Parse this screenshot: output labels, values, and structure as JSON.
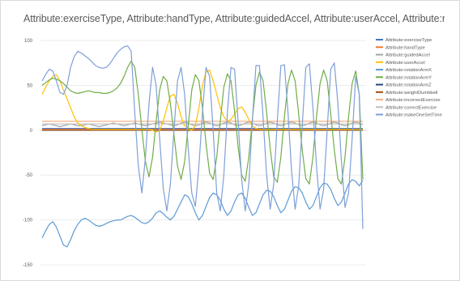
{
  "chart_data": {
    "type": "line",
    "title": "Attribute:exerciseType, Attribute:handType, Attribute:guidedAccel, Attribute:userAccel, Attribute:rotationArmX...",
    "ylim": [
      -150,
      100
    ],
    "yticks": [
      100,
      50,
      0,
      -50,
      -100,
      -150
    ],
    "grid": "horizontal",
    "legend_position": "right",
    "series": [
      {
        "name": "Attribute:exerciseType",
        "color": "#4472c4",
        "values": [
          2,
          2,
          2,
          2,
          2,
          2,
          2,
          2,
          2,
          2,
          2,
          2,
          2,
          2,
          2,
          2,
          2,
          2,
          2,
          2,
          2,
          2,
          2,
          2,
          2,
          2,
          2,
          2,
          2,
          2,
          2,
          2,
          2,
          2,
          2,
          2,
          2,
          2,
          2,
          2,
          2,
          2,
          2,
          2,
          2,
          2,
          2,
          2,
          2,
          2,
          2,
          2,
          2,
          2,
          2,
          2,
          2,
          2,
          2,
          2,
          2,
          2,
          2,
          2,
          2,
          2,
          2,
          2,
          2,
          2,
          2,
          2,
          2,
          2,
          2,
          2,
          2,
          2,
          2,
          2,
          2,
          2,
          2,
          2,
          2,
          2,
          2,
          2,
          2,
          2,
          2
        ]
      },
      {
        "name": "Attribute:handType",
        "color": "#ed7d31",
        "values": [
          1,
          1,
          1,
          1,
          1,
          1,
          1,
          1,
          1,
          1,
          1,
          1,
          1,
          1,
          1,
          1,
          1,
          1,
          1,
          1,
          1,
          1,
          1,
          1,
          1,
          1,
          1,
          1,
          1,
          1,
          1,
          1,
          1,
          1,
          1,
          1,
          1,
          1,
          1,
          1,
          1,
          1,
          1,
          1,
          1,
          1,
          1,
          1,
          1,
          1,
          1,
          1,
          1,
          1,
          1,
          1,
          1,
          1,
          1,
          1,
          1,
          1,
          1,
          1,
          1,
          1,
          1,
          1,
          1,
          1,
          1,
          1,
          1,
          1,
          1,
          1,
          1,
          1,
          1,
          1,
          1,
          1,
          1,
          1,
          1,
          1,
          1,
          1,
          1,
          1,
          1
        ]
      },
      {
        "name": "Attribute:guidedAccel",
        "color": "#a5a5a5",
        "values": [
          5,
          6,
          7,
          6,
          5,
          4,
          5,
          6,
          7,
          6,
          5,
          5,
          6,
          7,
          6,
          5,
          4,
          5,
          6,
          7,
          8,
          7,
          6,
          5,
          6,
          7,
          8,
          7,
          6,
          5,
          6,
          7,
          8,
          9,
          8,
          7,
          6,
          5,
          6,
          8,
          9,
          8,
          6,
          5,
          6,
          8,
          9,
          8,
          6,
          5,
          6,
          8,
          9,
          8,
          6,
          5,
          6,
          8,
          9,
          8,
          6,
          5,
          6,
          8,
          9,
          8,
          6,
          5,
          6,
          8,
          9,
          8,
          6,
          5,
          6,
          8,
          9,
          8,
          6,
          5,
          6,
          8,
          9,
          8,
          6,
          5,
          6,
          8,
          9,
          8,
          6
        ]
      },
      {
        "name": "Attribute:userAccel",
        "color": "#ffc000",
        "values": [
          40,
          48,
          55,
          60,
          62,
          55,
          45,
          35,
          25,
          15,
          8,
          5,
          3,
          2,
          1,
          1,
          1,
          1,
          1,
          1,
          1,
          1,
          1,
          1,
          1,
          1,
          1,
          1,
          1,
          1,
          1,
          0,
          -2,
          0,
          10,
          25,
          38,
          40,
          30,
          15,
          5,
          2,
          0,
          5,
          25,
          50,
          65,
          67,
          55,
          40,
          25,
          15,
          10,
          12,
          18,
          24,
          26,
          20,
          12,
          5,
          2,
          1,
          1,
          1,
          1,
          1,
          1,
          1,
          1,
          1,
          1,
          1,
          1,
          1,
          1,
          1,
          1,
          1,
          1,
          1,
          1,
          1,
          1,
          1,
          1,
          1,
          1,
          1,
          1,
          1,
          1
        ]
      },
      {
        "name": "Attribute:rotationArmX",
        "color": "#5b9bd5",
        "values": [
          -120,
          -112,
          -105,
          -102,
          -108,
          -118,
          -128,
          -130,
          -122,
          -112,
          -105,
          -100,
          -98,
          -100,
          -103,
          -106,
          -107,
          -106,
          -104,
          -102,
          -101,
          -100,
          -100,
          -98,
          -96,
          -95,
          -97,
          -100,
          -103,
          -104,
          -102,
          -98,
          -92,
          -90,
          -93,
          -97,
          -100,
          -96,
          -88,
          -80,
          -72,
          -74,
          -82,
          -92,
          -100,
          -95,
          -85,
          -75,
          -70,
          -72,
          -78,
          -88,
          -95,
          -90,
          -80,
          -72,
          -70,
          -76,
          -86,
          -95,
          -92,
          -82,
          -72,
          -67,
          -68,
          -74,
          -84,
          -92,
          -88,
          -78,
          -68,
          -63,
          -64,
          -70,
          -80,
          -88,
          -84,
          -74,
          -64,
          -59,
          -60,
          -66,
          -76,
          -84,
          -80,
          -70,
          -60,
          -55,
          -57,
          -62,
          -56
        ]
      },
      {
        "name": "Attribute:rotationArmY",
        "color": "#70ad47",
        "values": [
          50,
          53,
          56,
          58,
          57,
          55,
          52,
          48,
          44,
          42,
          41,
          42,
          43,
          44,
          43,
          42,
          42,
          41,
          41,
          42,
          44,
          47,
          52,
          60,
          70,
          77,
          70,
          40,
          0,
          -35,
          -52,
          -30,
          10,
          45,
          60,
          55,
          30,
          -5,
          -40,
          -55,
          -35,
          5,
          45,
          62,
          55,
          25,
          -15,
          -48,
          -55,
          -30,
          10,
          48,
          63,
          55,
          22,
          -18,
          -50,
          -57,
          -30,
          12,
          50,
          65,
          55,
          20,
          -20,
          -52,
          -58,
          -30,
          15,
          52,
          67,
          55,
          18,
          -22,
          -54,
          -60,
          -30,
          15,
          52,
          67,
          55,
          18,
          -22,
          -54,
          -60,
          -30,
          15,
          52,
          66,
          40,
          -55
        ]
      },
      {
        "name": "Attribute:rotationArmZ",
        "color": "#264478",
        "values": [
          0,
          0,
          0,
          0,
          0,
          0,
          0,
          0,
          0,
          0,
          0,
          0,
          0,
          0,
          0,
          0,
          0,
          0,
          0,
          0,
          0,
          0,
          0,
          0,
          0,
          0,
          0,
          0,
          0,
          0,
          0,
          0,
          0,
          0,
          0,
          0,
          0,
          0,
          0,
          0,
          0,
          0,
          0,
          0,
          0,
          0,
          0,
          0,
          0,
          0,
          0,
          0,
          0,
          0,
          0,
          0,
          0,
          0,
          0,
          0,
          0,
          0,
          0,
          0,
          0,
          0,
          0,
          0,
          0,
          0,
          0,
          0,
          0,
          0,
          0,
          0,
          0,
          0,
          0,
          0,
          0,
          0,
          0,
          0,
          0,
          0,
          0,
          0,
          0,
          0,
          0
        ]
      },
      {
        "name": "Attribute:weightDumbbell",
        "color": "#9e480e",
        "values": [
          0,
          0,
          0,
          0,
          0,
          0,
          0,
          0,
          0,
          0,
          0,
          0,
          0,
          0,
          0,
          0,
          0,
          0,
          0,
          0,
          0,
          0,
          0,
          0,
          0,
          0,
          0,
          0,
          0,
          0,
          0,
          0,
          0,
          0,
          0,
          0,
          0,
          0,
          0,
          0,
          0,
          0,
          0,
          0,
          0,
          0,
          0,
          0,
          0,
          0,
          0,
          0,
          0,
          0,
          0,
          0,
          0,
          0,
          0,
          0,
          0,
          0,
          0,
          0,
          0,
          0,
          0,
          0,
          0,
          0,
          0,
          0,
          0,
          0,
          0,
          0,
          0,
          0,
          0,
          0,
          0,
          0,
          0,
          0,
          0,
          0,
          0,
          0,
          0,
          0,
          0
        ]
      },
      {
        "name": "Attribute:incorrectExercise",
        "color": "#f4b183",
        "values": [
          10,
          10,
          10,
          10,
          10,
          10,
          10,
          10,
          10,
          10,
          10,
          10,
          10,
          10,
          10,
          10,
          10,
          10,
          10,
          10,
          10,
          10,
          10,
          10,
          10,
          10,
          10,
          10,
          10,
          10,
          10,
          10,
          10,
          10,
          10,
          10,
          10,
          10,
          10,
          10,
          10,
          10,
          10,
          10,
          10,
          10,
          10,
          10,
          10,
          10,
          10,
          10,
          10,
          10,
          10,
          10,
          10,
          10,
          10,
          10,
          10,
          10,
          10,
          10,
          10,
          10,
          10,
          10,
          10,
          10,
          10,
          10,
          10,
          10,
          10,
          10,
          10,
          10,
          10,
          10,
          10,
          10,
          10,
          10,
          10,
          10,
          10,
          10,
          10,
          10,
          10
        ]
      },
      {
        "name": "Attribute:correctExercise",
        "color": "#bfbfbf",
        "values": [
          7,
          7,
          7,
          7,
          7,
          7,
          7,
          7,
          7,
          7,
          7,
          7,
          7,
          7,
          7,
          7,
          7,
          7,
          7,
          7,
          7,
          7,
          7,
          7,
          7,
          7,
          7,
          7,
          7,
          7,
          7,
          7,
          7,
          7,
          7,
          7,
          7,
          7,
          7,
          7,
          7,
          7,
          7,
          7,
          7,
          7,
          7,
          7,
          7,
          7,
          7,
          7,
          7,
          7,
          7,
          7,
          7,
          7,
          7,
          7,
          7,
          7,
          7,
          7,
          7,
          7,
          7,
          7,
          7,
          7,
          7,
          7,
          7,
          7,
          7,
          7,
          7,
          7,
          7,
          7,
          7,
          7,
          7,
          7,
          7,
          7,
          7,
          7,
          7,
          7,
          7
        ]
      },
      {
        "name": "Attribute:makeOneSetTime",
        "color": "#7f9fd8",
        "values": [
          55,
          62,
          68,
          66,
          55,
          42,
          40,
          50,
          70,
          82,
          88,
          86,
          83,
          80,
          76,
          72,
          70,
          69,
          70,
          74,
          80,
          86,
          90,
          93,
          94,
          88,
          20,
          -40,
          -70,
          -30,
          30,
          70,
          50,
          -10,
          -65,
          -90,
          -60,
          0,
          55,
          70,
          40,
          -20,
          -70,
          -85,
          -40,
          20,
          70,
          60,
          0,
          -70,
          -90,
          -50,
          20,
          70,
          68,
          10,
          -55,
          -90,
          -60,
          10,
          72,
          72,
          15,
          -50,
          -88,
          -60,
          10,
          72,
          73,
          20,
          -45,
          -88,
          -62,
          5,
          70,
          74,
          25,
          -40,
          -88,
          -66,
          0,
          68,
          75,
          30,
          -35,
          -86,
          -70,
          -10,
          60,
          40,
          -110
        ]
      }
    ]
  }
}
